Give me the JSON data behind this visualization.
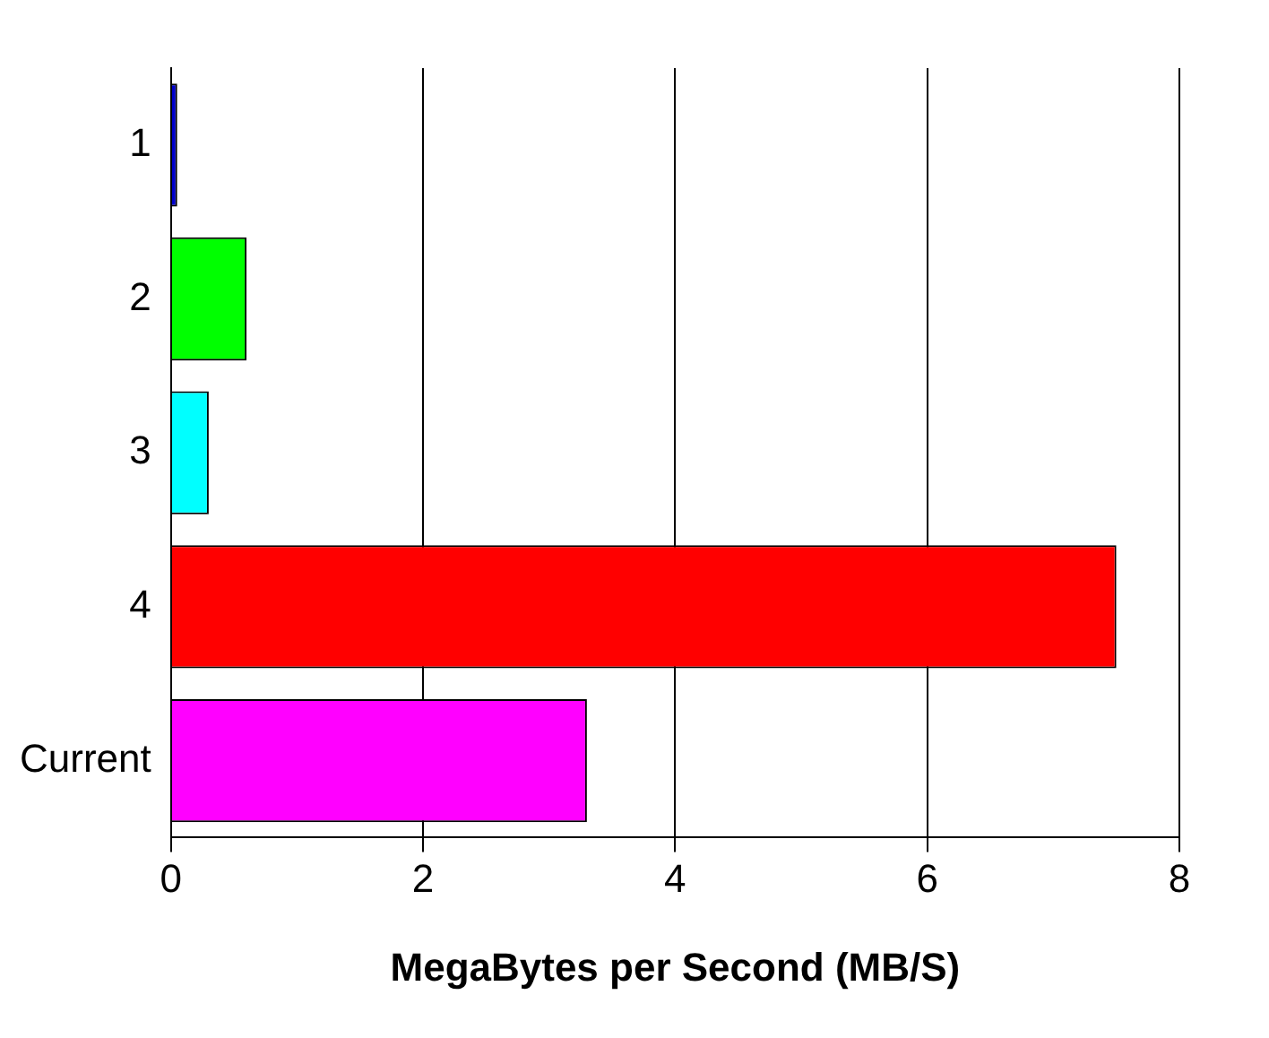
{
  "chart_data": {
    "type": "bar",
    "orientation": "horizontal",
    "categories": [
      "1",
      "2",
      "3",
      "4",
      "Current"
    ],
    "values": [
      0.05,
      0.6,
      0.3,
      7.5,
      3.3
    ],
    "colors": [
      "#0000cc",
      "#00ff00",
      "#00ffff",
      "#ff0000",
      "#ff00ff"
    ],
    "xlabel": "MegaBytes per Second (MB/S)",
    "xlim": [
      0,
      8
    ],
    "xticks": [
      0,
      2,
      4,
      6,
      8
    ],
    "grid": "x",
    "legend": false
  }
}
